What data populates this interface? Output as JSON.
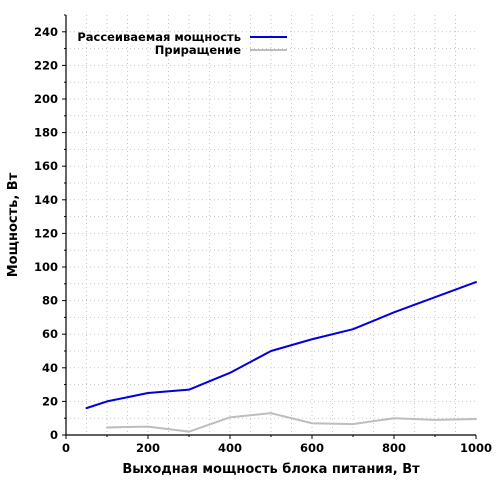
{
  "chart_data": {
    "type": "line",
    "xlabel": "Выходная мощность блока питания, Вт",
    "ylabel": "Мощность, Вт",
    "xlim": [
      0,
      1000
    ],
    "ylim": [
      0,
      250
    ],
    "x_ticks": [
      0,
      200,
      400,
      600,
      800,
      1000
    ],
    "y_ticks": [
      0,
      20,
      40,
      60,
      80,
      100,
      120,
      140,
      160,
      180,
      200,
      220,
      240
    ],
    "grid": true,
    "legend_position": "top-left",
    "series": [
      {
        "name": "Рассеиваемая мощность",
        "color": "#0000dd",
        "x": [
          50,
          100,
          200,
          300,
          400,
          500,
          600,
          700,
          800,
          900,
          1000
        ],
        "y": [
          16,
          20,
          25,
          27,
          37,
          50,
          57,
          63,
          73,
          82,
          91
        ]
      },
      {
        "name": "Приращение",
        "color": "#bdbdbd",
        "x": [
          100,
          200,
          300,
          400,
          500,
          600,
          700,
          800,
          900,
          1000
        ],
        "y": [
          4.5,
          5,
          2,
          10.5,
          13,
          7,
          6.5,
          10,
          9,
          9.5
        ]
      }
    ]
  }
}
